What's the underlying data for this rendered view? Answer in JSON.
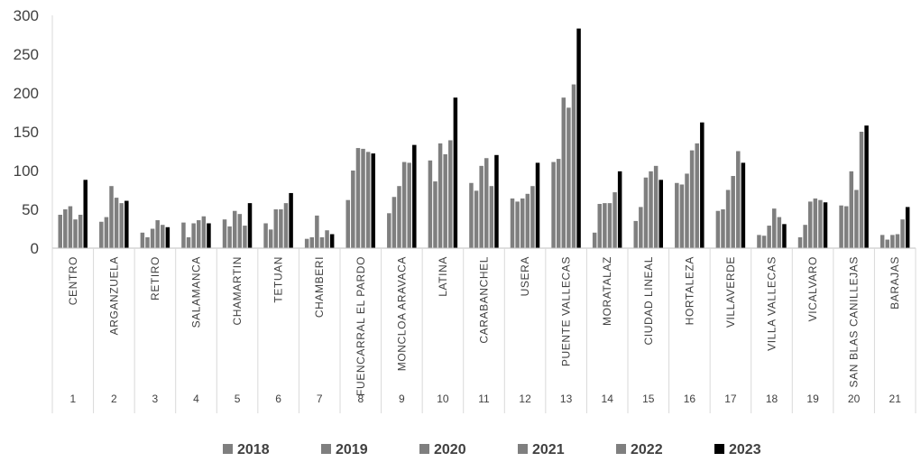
{
  "chart_data": {
    "type": "bar",
    "ylim": [
      0,
      300
    ],
    "yticks": [
      "0",
      "50",
      "100",
      "150",
      "200",
      "250",
      "300"
    ],
    "grid": false,
    "legend_position": "bottom",
    "categories": [
      {
        "num": "1",
        "name": "CENTRO"
      },
      {
        "num": "2",
        "name": "ARGANZUELA"
      },
      {
        "num": "3",
        "name": "RETIRO"
      },
      {
        "num": "4",
        "name": "SALAMANCA"
      },
      {
        "num": "5",
        "name": "CHAMARTIN"
      },
      {
        "num": "6",
        "name": "TETUAN"
      },
      {
        "num": "7",
        "name": "CHAMBERI"
      },
      {
        "num": "8",
        "name": "FUENCARRAL EL PARDO"
      },
      {
        "num": "9",
        "name": "MONCLOA ARAVACA"
      },
      {
        "num": "10",
        "name": "LATINA"
      },
      {
        "num": "11",
        "name": "CARABANCHEL"
      },
      {
        "num": "12",
        "name": "USERA"
      },
      {
        "num": "13",
        "name": "PUENTE VALLECAS"
      },
      {
        "num": "14",
        "name": "MORATALAZ"
      },
      {
        "num": "15",
        "name": "CIUDAD LINEAL"
      },
      {
        "num": "16",
        "name": "HORTALEZA"
      },
      {
        "num": "17",
        "name": "VILLAVERDE"
      },
      {
        "num": "18",
        "name": "VILLA VALLECAS"
      },
      {
        "num": "19",
        "name": "VICALVARO"
      },
      {
        "num": "20",
        "name": "SAN BLAS CANILLEJAS"
      },
      {
        "num": "21",
        "name": "BARAJAS"
      }
    ],
    "series": [
      {
        "name": "2018",
        "color": "#7f7f7f",
        "values": [
          43,
          34,
          20,
          33,
          37,
          32,
          12,
          62,
          45,
          113,
          84,
          64,
          111,
          20,
          35,
          84,
          48,
          17,
          14,
          55,
          17
        ]
      },
      {
        "name": "2019",
        "color": "#7f7f7f",
        "values": [
          50,
          40,
          14,
          14,
          28,
          24,
          14,
          100,
          66,
          86,
          74,
          60,
          115,
          57,
          53,
          82,
          50,
          16,
          30,
          54,
          11
        ]
      },
      {
        "name": "2020",
        "color": "#7f7f7f",
        "values": [
          54,
          80,
          25,
          32,
          48,
          50,
          42,
          129,
          80,
          135,
          106,
          64,
          194,
          58,
          91,
          96,
          75,
          29,
          60,
          99,
          17
        ]
      },
      {
        "name": "2021",
        "color": "#7f7f7f",
        "values": [
          37,
          65,
          36,
          36,
          44,
          50,
          14,
          128,
          111,
          121,
          116,
          70,
          181,
          58,
          99,
          126,
          93,
          51,
          64,
          75,
          18
        ]
      },
      {
        "name": "2022",
        "color": "#7f7f7f",
        "values": [
          43,
          58,
          30,
          41,
          29,
          58,
          23,
          124,
          110,
          139,
          80,
          80,
          211,
          72,
          106,
          135,
          125,
          40,
          62,
          150,
          37
        ]
      },
      {
        "name": "2023",
        "color": "#000000",
        "values": [
          88,
          61,
          27,
          32,
          58,
          71,
          18,
          122,
          133,
          194,
          120,
          110,
          283,
          99,
          88,
          162,
          110,
          31,
          59,
          158,
          53
        ]
      }
    ]
  }
}
